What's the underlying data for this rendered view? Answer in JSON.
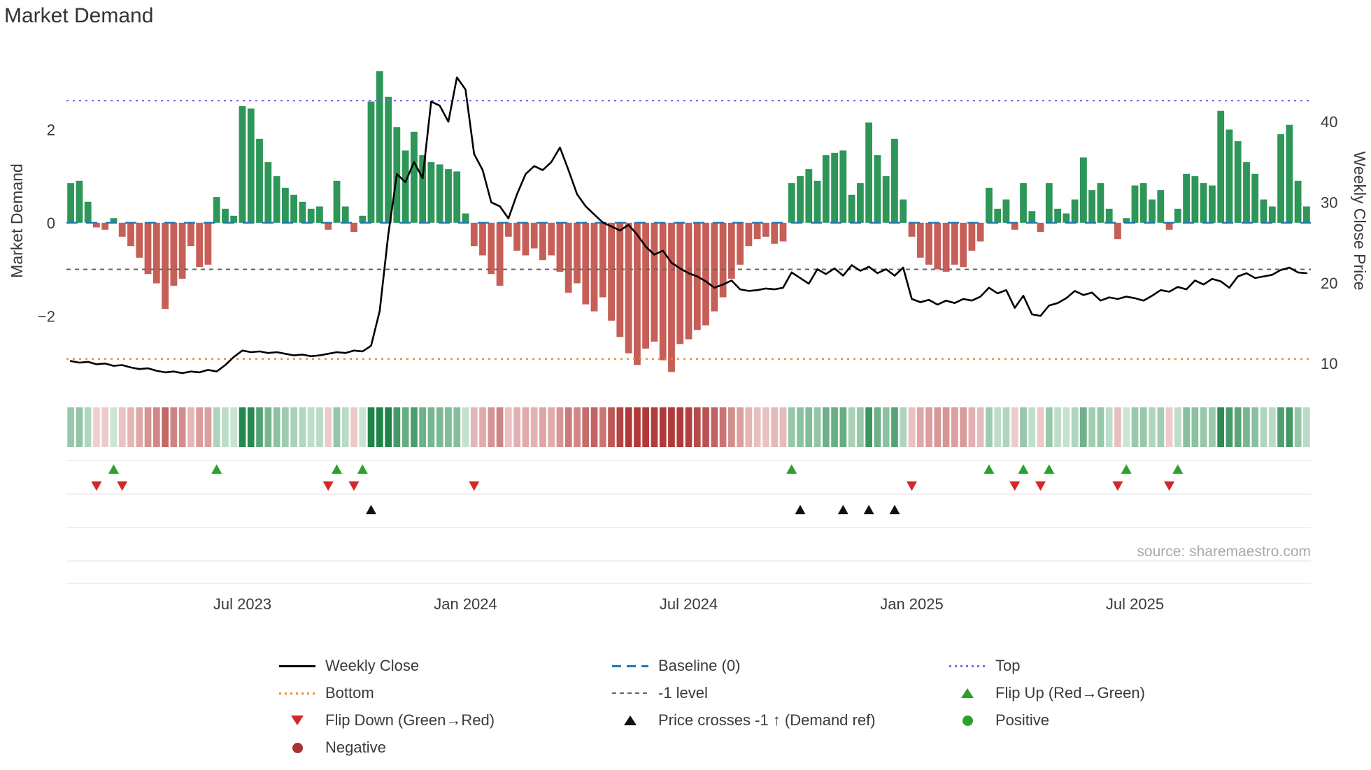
{
  "title": "Market Demand",
  "source": "source: sharemaestro.com",
  "colors": {
    "positive_bar": "#2e9658",
    "negative_bar": "#c65f58",
    "price_line": "#000000",
    "baseline": "#1f77b4",
    "top": "#7b68ee",
    "bottom": "#ee8b22",
    "minus1": "#666666",
    "flip_up": "#2ca02c",
    "flip_down": "#d62728",
    "cross": "#111111",
    "positive_dot": "#2ca02c",
    "negative_dot": "#a93232",
    "heat_green_dark": "#1e8449",
    "heat_red_dark": "#b03a3a"
  },
  "legend": {
    "weekly_close": "Weekly Close",
    "baseline": "Baseline (0)",
    "top": "Top",
    "bottom": "Bottom",
    "minus1": "-1 level",
    "flip_up": "Flip Up (Red→Green)",
    "flip_down": "Flip Down (Green→Red)",
    "price_cross": "Price crosses -1 ↑ (Demand ref)",
    "positive": "Positive",
    "negative": "Negative"
  },
  "chart_data": {
    "type": "bar",
    "title": "Market Demand",
    "n_weeks": 145,
    "x_ticks": [
      {
        "week": 20,
        "label": "Jul 2023"
      },
      {
        "week": 46,
        "label": "Jan 2024"
      },
      {
        "week": 72,
        "label": "Jul 2024"
      },
      {
        "week": 98,
        "label": "Jan 2025"
      },
      {
        "week": 124,
        "label": "Jul 2025"
      }
    ],
    "left_axis": {
      "label": "Market Demand",
      "ylim": [
        -3.45,
        3.55
      ],
      "ticks": [
        {
          "v": 2,
          "label": "2"
        },
        {
          "v": 0,
          "label": "0"
        },
        {
          "v": -2,
          "label": "−2"
        }
      ]
    },
    "right_axis": {
      "label": "Weekly Close Price",
      "ylim": [
        7.5,
        48
      ],
      "ticks": [
        {
          "v": 40,
          "label": "40"
        },
        {
          "v": 30,
          "label": "30"
        },
        {
          "v": 20,
          "label": "20"
        },
        {
          "v": 10,
          "label": "10"
        }
      ]
    },
    "ref_lines": {
      "baseline": 0,
      "top": 2.62,
      "bottom": -2.92,
      "minus1": -1
    },
    "demand": [
      0.85,
      0.9,
      0.45,
      -0.1,
      -0.15,
      0.1,
      -0.3,
      -0.5,
      -0.75,
      -1.1,
      -1.3,
      -1.85,
      -1.35,
      -1.2,
      -0.5,
      -0.95,
      -0.9,
      0.55,
      0.3,
      0.15,
      2.5,
      2.45,
      1.8,
      1.3,
      1.0,
      0.75,
      0.6,
      0.45,
      0.3,
      0.35,
      -0.15,
      0.9,
      0.35,
      -0.2,
      0.15,
      2.6,
      3.25,
      2.7,
      2.05,
      1.55,
      1.95,
      1.45,
      1.3,
      1.25,
      1.15,
      1.1,
      0.2,
      -0.5,
      -0.7,
      -1.1,
      -1.35,
      -0.3,
      -0.6,
      -0.7,
      -0.55,
      -0.8,
      -0.7,
      -1.05,
      -1.5,
      -1.3,
      -1.75,
      -1.9,
      -1.6,
      -2.1,
      -2.45,
      -2.8,
      -3.05,
      -2.7,
      -2.55,
      -2.95,
      -3.2,
      -2.6,
      -2.5,
      -2.3,
      -2.2,
      -1.9,
      -1.6,
      -1.2,
      -0.9,
      -0.5,
      -0.35,
      -0.3,
      -0.45,
      -0.4,
      0.85,
      1.0,
      1.15,
      0.9,
      1.45,
      1.5,
      1.55,
      0.6,
      0.85,
      2.15,
      1.45,
      1.0,
      1.8,
      0.5,
      -0.3,
      -0.75,
      -0.9,
      -1.0,
      -1.05,
      -0.9,
      -0.95,
      -0.6,
      -0.4,
      0.75,
      0.3,
      0.5,
      -0.15,
      0.85,
      0.25,
      -0.2,
      0.85,
      0.3,
      0.2,
      0.5,
      1.4,
      0.7,
      0.85,
      0.3,
      -0.35,
      0.1,
      0.8,
      0.85,
      0.5,
      0.7,
      -0.15,
      0.3,
      1.05,
      1.0,
      0.85,
      0.8,
      2.4,
      2.0,
      1.75,
      1.3,
      1.05,
      0.5,
      0.35,
      1.9,
      2.1,
      0.9,
      0.35
    ],
    "price": [
      10.3,
      10.1,
      10.2,
      9.9,
      10.0,
      9.7,
      9.8,
      9.5,
      9.3,
      9.4,
      9.1,
      8.9,
      9.0,
      8.8,
      9.0,
      8.9,
      9.2,
      9.0,
      9.8,
      10.8,
      11.6,
      11.4,
      11.5,
      11.3,
      11.4,
      11.2,
      11.0,
      11.1,
      10.9,
      11.0,
      11.2,
      11.4,
      11.3,
      11.6,
      11.5,
      12.2,
      16.5,
      26.0,
      33.5,
      32.5,
      35.0,
      33.0,
      42.5,
      42.0,
      40.0,
      45.5,
      44.0,
      36.0,
      34.0,
      30.0,
      29.5,
      28.0,
      31.0,
      33.5,
      34.5,
      34.0,
      35.0,
      36.8,
      34.0,
      31.0,
      29.5,
      28.5,
      27.5,
      27.0,
      26.5,
      27.2,
      26.0,
      24.5,
      23.5,
      24.0,
      22.5,
      21.8,
      21.2,
      20.8,
      20.2,
      19.4,
      19.8,
      20.3,
      19.2,
      19.0,
      19.1,
      19.3,
      19.2,
      19.4,
      21.3,
      20.6,
      19.9,
      21.7,
      21.1,
      21.8,
      20.9,
      22.2,
      21.5,
      22.0,
      21.2,
      21.7,
      20.9,
      21.9,
      18.0,
      17.6,
      17.9,
      17.3,
      17.8,
      17.5,
      18.0,
      17.8,
      18.3,
      19.4,
      18.7,
      19.1,
      16.9,
      18.4,
      16.1,
      15.9,
      17.2,
      17.5,
      18.1,
      19.0,
      18.5,
      18.8,
      17.8,
      18.2,
      18.0,
      18.3,
      18.1,
      17.8,
      18.4,
      19.1,
      18.9,
      19.5,
      19.2,
      20.3,
      19.8,
      20.5,
      20.2,
      19.4,
      20.8,
      21.2,
      20.6,
      20.8,
      21.0,
      21.6,
      21.9,
      21.3,
      21.2
    ],
    "markers": {
      "flip_up_weeks": [
        5,
        17,
        31,
        34,
        84,
        107,
        111,
        114,
        123,
        129
      ],
      "flip_down_weeks": [
        3,
        6,
        30,
        33,
        47,
        98,
        110,
        113,
        122,
        128
      ],
      "price_cross_weeks": [
        35,
        85,
        90,
        93,
        96
      ]
    },
    "heatmap": "demand-derived"
  }
}
